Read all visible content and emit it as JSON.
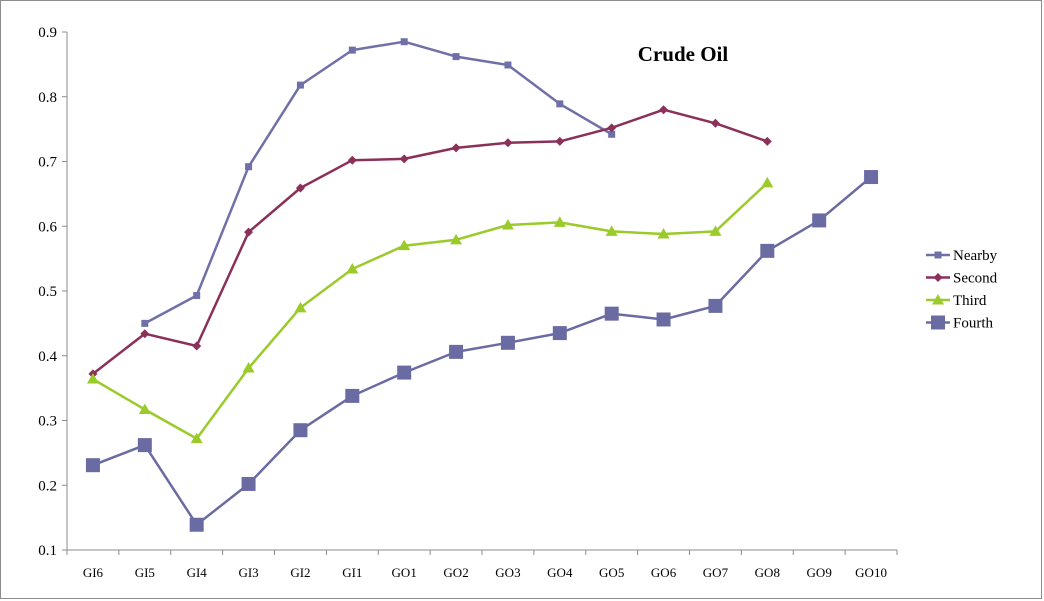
{
  "chart_data": {
    "type": "line",
    "title": "Crude Oil",
    "xlabel": "",
    "ylabel": "",
    "categories": [
      "GI6",
      "GI5",
      "GI4",
      "GI3",
      "GI2",
      "GI1",
      "GO1",
      "GO2",
      "GO3",
      "GO4",
      "GO5",
      "GO6",
      "GO7",
      "GO8",
      "GO9",
      "GO10"
    ],
    "yticks": [
      "0.1",
      "0.2",
      "0.3",
      "0.4",
      "0.5",
      "0.6",
      "0.7",
      "0.8",
      "0.9"
    ],
    "ylim": [
      0.1,
      0.9
    ],
    "grid": false,
    "legend_position": "right",
    "series": [
      {
        "name": "Nearby",
        "color": "#7070a8",
        "marker": "small-square",
        "values": [
          null,
          0.45,
          0.493,
          0.692,
          0.818,
          0.872,
          0.885,
          0.862,
          0.849,
          0.789,
          0.742,
          null,
          null,
          null,
          null,
          null
        ]
      },
      {
        "name": "Second",
        "color": "#8b3059",
        "marker": "diamond",
        "values": [
          0.372,
          0.434,
          0.415,
          0.591,
          0.659,
          0.702,
          0.704,
          0.721,
          0.729,
          0.731,
          0.752,
          0.78,
          0.759,
          0.731,
          null,
          null
        ]
      },
      {
        "name": "Third",
        "color": "#9acb2a",
        "marker": "triangle",
        "values": [
          0.364,
          0.317,
          0.272,
          0.381,
          0.474,
          0.534,
          0.57,
          0.579,
          0.602,
          0.606,
          0.592,
          0.588,
          0.592,
          0.667,
          null,
          null
        ]
      },
      {
        "name": "Fourth",
        "color": "#6b6ba3",
        "marker": "large-square",
        "values": [
          0.231,
          0.262,
          0.139,
          0.202,
          0.285,
          0.338,
          0.374,
          0.406,
          0.42,
          0.435,
          0.465,
          0.456,
          0.477,
          0.562,
          0.609,
          0.676
        ]
      }
    ]
  }
}
